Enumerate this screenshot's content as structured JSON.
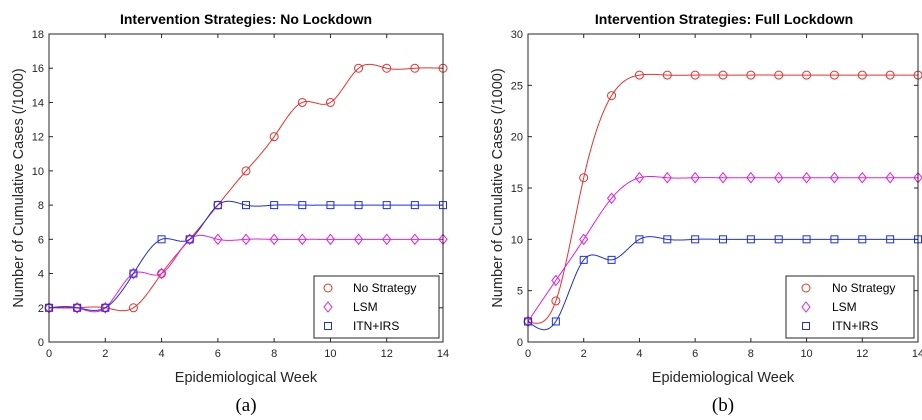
{
  "chart_data": [
    {
      "type": "line",
      "title": "Intervention Strategies: No Lockdown",
      "xlabel": "Epidemiological Week",
      "ylabel": "Number of Cumulative Cases (/1000)",
      "caption": "(a)",
      "xlim": [
        0,
        14
      ],
      "ylim": [
        0,
        18
      ],
      "xticks": [
        0,
        2,
        4,
        6,
        8,
        10,
        12,
        14
      ],
      "yticks": [
        0,
        2,
        4,
        6,
        8,
        10,
        12,
        14,
        16,
        18
      ],
      "legend_position": "bottom-right",
      "grid": false,
      "x": [
        0,
        1,
        2,
        3,
        4,
        5,
        6,
        7,
        8,
        9,
        10,
        11,
        12,
        13,
        14
      ],
      "series": [
        {
          "name": "No Strategy",
          "color": "#e8312f",
          "marker": "circle",
          "values": [
            2,
            2,
            2,
            2,
            4,
            6,
            8,
            10,
            12,
            14,
            14,
            16,
            16,
            16,
            16
          ]
        },
        {
          "name": "LSM",
          "color": "#e020e0",
          "marker": "diamond",
          "values": [
            2,
            2,
            2,
            4,
            4,
            6,
            6,
            6,
            6,
            6,
            6,
            6,
            6,
            6,
            6
          ]
        },
        {
          "name": "ITN+IRS",
          "color": "#1f2fe0",
          "marker": "square",
          "values": [
            2,
            2,
            2,
            4,
            6,
            6,
            8,
            8,
            8,
            8,
            8,
            8,
            8,
            8,
            8
          ]
        }
      ]
    },
    {
      "type": "line",
      "title": "Intervention Strategies: Full Lockdown",
      "xlabel": "Epidemiological Week",
      "ylabel": "Number of Cumulative Cases (/1000)",
      "caption": "(b)",
      "xlim": [
        0,
        14
      ],
      "ylim": [
        0,
        30
      ],
      "xticks": [
        0,
        2,
        4,
        6,
        8,
        10,
        12,
        14
      ],
      "yticks": [
        0,
        5,
        10,
        15,
        20,
        25,
        30
      ],
      "legend_position": "bottom-right",
      "grid": false,
      "x": [
        0,
        1,
        2,
        3,
        4,
        5,
        6,
        7,
        8,
        9,
        10,
        11,
        12,
        13,
        14
      ],
      "series": [
        {
          "name": "No Strategy",
          "color": "#e8312f",
          "marker": "circle",
          "values": [
            2,
            4,
            16,
            24,
            26,
            26,
            26,
            26,
            26,
            26,
            26,
            26,
            26,
            26,
            26
          ]
        },
        {
          "name": "LSM",
          "color": "#e020e0",
          "marker": "diamond",
          "values": [
            2,
            6,
            10,
            14,
            16,
            16,
            16,
            16,
            16,
            16,
            16,
            16,
            16,
            16,
            16
          ]
        },
        {
          "name": "ITN+IRS",
          "color": "#1f2fe0",
          "marker": "square",
          "values": [
            2,
            2,
            8,
            8,
            10,
            10,
            10,
            10,
            10,
            10,
            10,
            10,
            10,
            10,
            10
          ]
        }
      ]
    }
  ]
}
